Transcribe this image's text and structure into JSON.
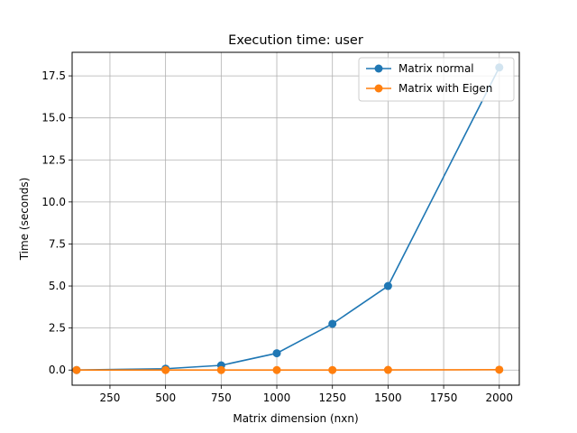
{
  "chart_data": {
    "type": "line",
    "title": "Execution time: user",
    "xlabel": "Matrix dimension (nxn)",
    "ylabel": "Time (seconds)",
    "xlim": [
      80,
      2090
    ],
    "ylim": [
      -0.9,
      18.9
    ],
    "x_ticks": [
      250,
      500,
      750,
      1000,
      1250,
      1500,
      1750,
      2000
    ],
    "x_tick_labels": [
      "250",
      "500",
      "750",
      "1000",
      "1250",
      "1500",
      "1750",
      "2000"
    ],
    "y_ticks": [
      0,
      2.5,
      5,
      7.5,
      10,
      12.5,
      15,
      17.5
    ],
    "y_tick_labels": [
      "0.0",
      "2.5",
      "5.0",
      "7.5",
      "10.0",
      "12.5",
      "15.0",
      "17.5"
    ],
    "grid": true,
    "legend_position": "top-right",
    "x": [
      100,
      500,
      750,
      1000,
      1250,
      1500,
      2000
    ],
    "series": [
      {
        "name": "Matrix normal",
        "color": "#1f77b4",
        "values": [
          0.0,
          0.08,
          0.28,
          1.0,
          2.75,
          5.0,
          18.0
        ]
      },
      {
        "name": "Matrix with Eigen",
        "color": "#ff7f0e",
        "values": [
          0.0,
          0.0,
          0.0,
          0.0,
          0.0,
          0.01,
          0.02
        ]
      }
    ]
  }
}
